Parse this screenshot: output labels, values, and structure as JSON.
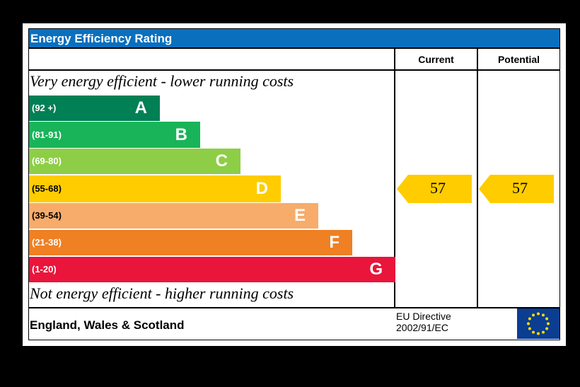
{
  "title": "Energy Efficiency Rating",
  "columns": {
    "current": "Current",
    "potential": "Potential"
  },
  "top_note": "Very energy efficient - lower running costs",
  "bottom_note": "Not energy efficient - higher running costs",
  "footer": {
    "region": "England, Wales & Scotland",
    "directive_line1": "EU Directive",
    "directive_line2": "2002/91/EC"
  },
  "chart_data": {
    "type": "bar",
    "title": "Energy Efficiency Rating",
    "bands": [
      {
        "letter": "A",
        "range": "(92 +)",
        "color": "#008054"
      },
      {
        "letter": "B",
        "range": "(81-91)",
        "color": "#19b459"
      },
      {
        "letter": "C",
        "range": "(69-80)",
        "color": "#8dce46"
      },
      {
        "letter": "D",
        "range": "(55-68)",
        "color": "#ffcc00"
      },
      {
        "letter": "E",
        "range": "(39-54)",
        "color": "#f7ac6b"
      },
      {
        "letter": "F",
        "range": "(21-38)",
        "color": "#ef8023"
      },
      {
        "letter": "G",
        "range": "(1-20)",
        "color": "#e9153b"
      }
    ],
    "current": {
      "value": "57",
      "band": "D",
      "color": "#ffcc00"
    },
    "potential": {
      "value": "57",
      "band": "D",
      "color": "#ffcc00"
    }
  }
}
